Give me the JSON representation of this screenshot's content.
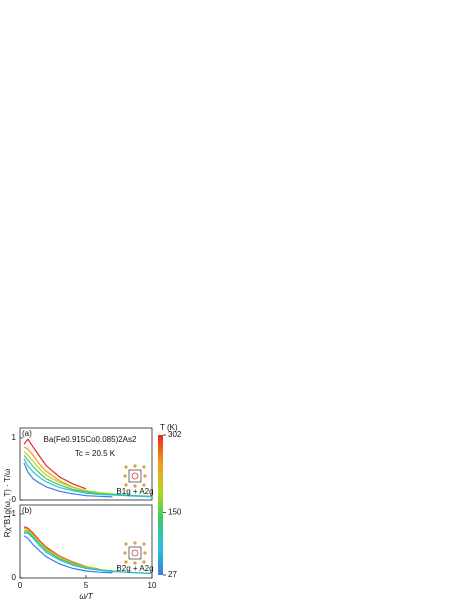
{
  "chart_data": [
    {
      "type": "line",
      "panel_label": "(a)",
      "title": "Ba(Fe0.915Co0.085)2As2",
      "subtitle": "Tc = 20.5 K",
      "inset_label": "B1g + A2g",
      "ylabel": "Rχ''B1g(ω, T) · T/ω",
      "x": [
        0.3,
        0.6,
        1,
        1.5,
        2,
        3,
        4,
        5,
        6,
        7,
        8,
        9,
        10
      ],
      "xlim": [
        0,
        10
      ],
      "ylim": [
        0,
        1.16
      ],
      "yticks": [
        0,
        1
      ],
      "series": [
        {
          "color": "#e8281c",
          "values": [
            0.9,
            0.98,
            0.85,
            0.7,
            0.55,
            0.37,
            0.26,
            0.18,
            null,
            null,
            null,
            null,
            null
          ]
        },
        {
          "color": "#f39a1c",
          "values": [
            0.85,
            0.82,
            0.72,
            0.57,
            0.46,
            0.31,
            0.21,
            0.15,
            0.12,
            null,
            null,
            null,
            null
          ]
        },
        {
          "color": "#b8d81e",
          "values": [
            0.78,
            0.72,
            0.62,
            0.5,
            0.4,
            0.28,
            0.2,
            0.15,
            0.12,
            0.1,
            0.08,
            null,
            null
          ]
        },
        {
          "color": "#3cc866",
          "values": [
            0.72,
            0.64,
            0.54,
            0.43,
            0.34,
            0.24,
            0.17,
            0.13,
            0.1,
            0.09,
            0.08,
            0.07,
            0.06
          ]
        },
        {
          "color": "#2ac0e0",
          "values": [
            0.66,
            0.55,
            0.45,
            0.36,
            0.29,
            0.2,
            0.15,
            0.11,
            0.09,
            0.08,
            0.07,
            0.06,
            0.05
          ]
        },
        {
          "color": "#3a7fe0",
          "values": [
            0.6,
            0.45,
            0.34,
            0.27,
            0.21,
            0.14,
            0.1,
            0.07,
            0.06,
            0.05,
            null,
            null,
            null
          ]
        }
      ]
    },
    {
      "type": "line",
      "panel_label": "(b)",
      "inset_label": "B2g + A2g",
      "x": [
        0.3,
        0.6,
        1,
        1.5,
        2,
        3,
        4,
        5,
        6,
        7,
        8,
        9,
        10
      ],
      "xlim": [
        0,
        10
      ],
      "ylim": [
        0,
        1.14
      ],
      "yticks": [
        0,
        1
      ],
      "xticks": [
        0,
        5,
        10
      ],
      "xlabel": "ω/T",
      "series": [
        {
          "color": "#e8281c",
          "values": [
            0.8,
            0.78,
            0.7,
            0.58,
            0.48,
            0.34,
            0.25,
            0.18,
            null,
            null,
            null,
            null,
            null
          ]
        },
        {
          "color": "#f39a1c",
          "values": [
            0.78,
            0.76,
            0.68,
            0.56,
            0.46,
            0.33,
            0.24,
            0.18,
            0.14,
            null,
            null,
            null,
            null
          ]
        },
        {
          "color": "#b8d81e",
          "values": [
            0.75,
            0.74,
            0.66,
            0.55,
            0.45,
            0.32,
            0.23,
            0.17,
            0.13,
            0.11,
            0.09,
            null,
            null
          ]
        },
        {
          "color": "#3cc866",
          "values": [
            0.72,
            0.72,
            0.64,
            0.53,
            0.43,
            0.3,
            0.22,
            0.16,
            0.13,
            0.11,
            0.09,
            0.08,
            0.07
          ]
        },
        {
          "color": "#2ac0e0",
          "values": [
            0.7,
            0.7,
            0.62,
            0.5,
            0.4,
            0.28,
            0.2,
            0.15,
            0.12,
            0.1,
            0.09,
            0.08,
            0.07
          ]
        },
        {
          "color": "#3a7fe0",
          "values": [
            0.66,
            0.62,
            0.52,
            0.42,
            0.33,
            0.22,
            0.15,
            0.11,
            0.09,
            0.08,
            null,
            null,
            null
          ]
        }
      ]
    }
  ],
  "colorbar": {
    "label": "T (K)",
    "clim": [
      27,
      302
    ],
    "ticks": [
      27,
      150,
      302
    ],
    "colors": [
      "#3a7fe0",
      "#2ac0e0",
      "#3cc866",
      "#b8d81e",
      "#f39a1c",
      "#e8281c"
    ]
  }
}
